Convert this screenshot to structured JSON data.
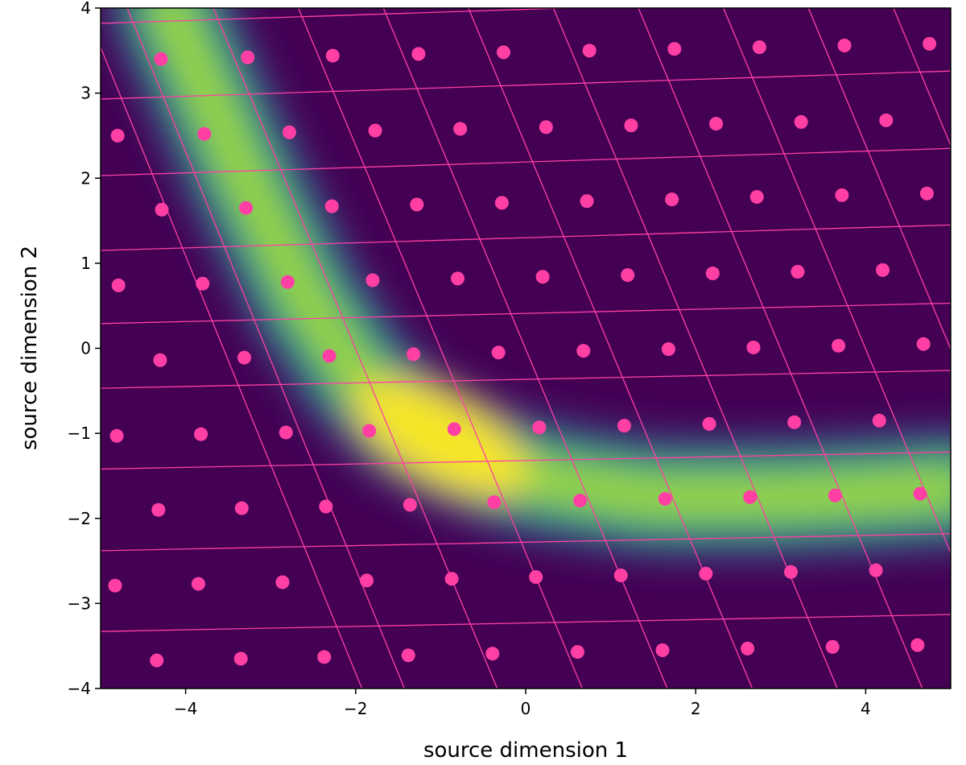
{
  "chart_data": {
    "type": "heatmap",
    "title": "",
    "xlabel": "source dimension 1",
    "ylabel": "source dimension 2",
    "xlim": [
      -5,
      5
    ],
    "ylim": [
      -4,
      4
    ],
    "x_ticks": [
      -4,
      -2,
      0,
      2,
      4
    ],
    "y_ticks": [
      -4,
      -3,
      -2,
      -1,
      0,
      1,
      2,
      3,
      4
    ],
    "x_tick_labels": [
      "−4",
      "−2",
      "0",
      "2",
      "4"
    ],
    "y_tick_labels": [
      "−4",
      "−3",
      "−2",
      "−1",
      "0",
      "1",
      "2",
      "3",
      "4"
    ],
    "colormap": "viridis",
    "overlay_color": "#ff3fa4",
    "density_ridge": [
      {
        "x": -4.2,
        "y": 4.0
      },
      {
        "x": -3.3,
        "y": 2.0
      },
      {
        "x": -2.6,
        "y": 0.6
      },
      {
        "x": -2.0,
        "y": -0.3
      },
      {
        "x": -1.4,
        "y": -0.9
      },
      {
        "x": -0.8,
        "y": -1.2
      },
      {
        "x": -0.2,
        "y": -1.45
      },
      {
        "x": 0.5,
        "y": -1.6
      },
      {
        "x": 1.5,
        "y": -1.75
      },
      {
        "x": 3.0,
        "y": -1.75
      },
      {
        "x": 4.2,
        "y": -1.7
      },
      {
        "x": 5.0,
        "y": -1.65
      }
    ],
    "density_peak": {
      "x": -1.0,
      "y": -1.05
    },
    "grid_lines": {
      "horizontal": [
        [
          [
            -5,
            -4.29
          ],
          [
            5,
            -4.1
          ]
        ],
        [
          [
            -5,
            -3.33
          ],
          [
            5,
            -3.13
          ]
        ],
        [
          [
            -5,
            -2.38
          ],
          [
            5,
            -2.18
          ]
        ],
        [
          [
            -5,
            -1.42
          ],
          [
            5,
            -1.22
          ]
        ],
        [
          [
            -5,
            -0.47
          ],
          [
            5,
            -0.26
          ]
        ],
        [
          [
            -5,
            0.29
          ],
          [
            5,
            0.53
          ]
        ],
        [
          [
            -5,
            1.15
          ],
          [
            5,
            1.45
          ]
        ],
        [
          [
            -5,
            2.03
          ],
          [
            5,
            2.35
          ]
        ],
        [
          [
            -5,
            2.93
          ],
          [
            5,
            3.26
          ]
        ],
        [
          [
            -5,
            3.82
          ],
          [
            5,
            4.15
          ]
        ]
      ],
      "slanted": [
        [
          [
            -5.8,
            5.5
          ],
          [
            -1.6,
            -4.8
          ]
        ],
        [
          [
            -5.3,
            5.5
          ],
          [
            -1.1,
            -4.8
          ]
        ],
        [
          [
            -4.3,
            5.5
          ],
          [
            0.0,
            -4.8
          ]
        ],
        [
          [
            -3.3,
            5.5
          ],
          [
            1.0,
            -4.8
          ]
        ],
        [
          [
            -2.3,
            5.5
          ],
          [
            2.0,
            -4.8
          ]
        ],
        [
          [
            -1.3,
            5.5
          ],
          [
            3.0,
            -4.8
          ]
        ],
        [
          [
            -0.3,
            5.5
          ],
          [
            4.0,
            -4.8
          ]
        ],
        [
          [
            0.7,
            5.5
          ],
          [
            5.0,
            -4.8
          ]
        ],
        [
          [
            1.7,
            5.5
          ],
          [
            6.0,
            -4.8
          ]
        ],
        [
          [
            2.7,
            5.5
          ],
          [
            7.0,
            -4.8
          ]
        ],
        [
          [
            3.7,
            5.5
          ],
          [
            8.0,
            -4.8
          ]
        ],
        [
          [
            4.7,
            5.5
          ],
          [
            9.0,
            -4.8
          ]
        ]
      ]
    },
    "points": [
      {
        "x": -4.29,
        "y": 3.4
      },
      {
        "x": -3.27,
        "y": 3.42
      },
      {
        "x": -2.27,
        "y": 3.44
      },
      {
        "x": -1.26,
        "y": 3.46
      },
      {
        "x": -0.26,
        "y": 3.48
      },
      {
        "x": 0.75,
        "y": 3.5
      },
      {
        "x": 1.75,
        "y": 3.52
      },
      {
        "x": 2.75,
        "y": 3.54
      },
      {
        "x": 3.75,
        "y": 3.56
      },
      {
        "x": 4.75,
        "y": 3.58
      },
      {
        "x": -4.8,
        "y": 2.5
      },
      {
        "x": -3.78,
        "y": 2.52
      },
      {
        "x": -2.78,
        "y": 2.54
      },
      {
        "x": -1.77,
        "y": 2.56
      },
      {
        "x": -0.77,
        "y": 2.58
      },
      {
        "x": 0.24,
        "y": 2.6
      },
      {
        "x": 1.24,
        "y": 2.62
      },
      {
        "x": 2.24,
        "y": 2.64
      },
      {
        "x": 3.24,
        "y": 2.66
      },
      {
        "x": 4.24,
        "y": 2.68
      },
      {
        "x": -4.28,
        "y": 1.63
      },
      {
        "x": -3.29,
        "y": 1.65
      },
      {
        "x": -2.28,
        "y": 1.67
      },
      {
        "x": -1.28,
        "y": 1.69
      },
      {
        "x": -0.28,
        "y": 1.71
      },
      {
        "x": 0.72,
        "y": 1.73
      },
      {
        "x": 1.72,
        "y": 1.75
      },
      {
        "x": 2.72,
        "y": 1.78
      },
      {
        "x": 3.72,
        "y": 1.8
      },
      {
        "x": 4.72,
        "y": 1.82
      },
      {
        "x": -4.79,
        "y": 0.74
      },
      {
        "x": -3.8,
        "y": 0.76
      },
      {
        "x": -2.8,
        "y": 0.78
      },
      {
        "x": -1.8,
        "y": 0.8
      },
      {
        "x": -0.8,
        "y": 0.82
      },
      {
        "x": 0.2,
        "y": 0.84
      },
      {
        "x": 1.2,
        "y": 0.86
      },
      {
        "x": 2.2,
        "y": 0.88
      },
      {
        "x": 3.2,
        "y": 0.9
      },
      {
        "x": 4.2,
        "y": 0.92
      },
      {
        "x": -4.3,
        "y": -0.14
      },
      {
        "x": -3.31,
        "y": -0.11
      },
      {
        "x": -2.31,
        "y": -0.09
      },
      {
        "x": -1.32,
        "y": -0.07
      },
      {
        "x": -0.32,
        "y": -0.05
      },
      {
        "x": 0.68,
        "y": -0.03
      },
      {
        "x": 1.68,
        "y": -0.01
      },
      {
        "x": 2.68,
        "y": 0.01
      },
      {
        "x": 3.68,
        "y": 0.03
      },
      {
        "x": 4.68,
        "y": 0.05
      },
      {
        "x": -4.81,
        "y": -1.03
      },
      {
        "x": -3.82,
        "y": -1.01
      },
      {
        "x": -2.82,
        "y": -0.99
      },
      {
        "x": -1.84,
        "y": -0.97
      },
      {
        "x": -0.84,
        "y": -0.95
      },
      {
        "x": 0.16,
        "y": -0.93
      },
      {
        "x": 1.16,
        "y": -0.91
      },
      {
        "x": 2.16,
        "y": -0.89
      },
      {
        "x": 3.16,
        "y": -0.87
      },
      {
        "x": 4.16,
        "y": -0.85
      },
      {
        "x": -4.32,
        "y": -1.9
      },
      {
        "x": -3.34,
        "y": -1.88
      },
      {
        "x": -2.35,
        "y": -1.86
      },
      {
        "x": -1.36,
        "y": -1.84
      },
      {
        "x": -0.37,
        "y": -1.81
      },
      {
        "x": 0.64,
        "y": -1.79
      },
      {
        "x": 1.64,
        "y": -1.77
      },
      {
        "x": 2.64,
        "y": -1.75
      },
      {
        "x": 3.64,
        "y": -1.73
      },
      {
        "x": 4.64,
        "y": -1.71
      },
      {
        "x": -4.83,
        "y": -2.79
      },
      {
        "x": -3.85,
        "y": -2.77
      },
      {
        "x": -2.86,
        "y": -2.75
      },
      {
        "x": -1.87,
        "y": -2.73
      },
      {
        "x": -0.87,
        "y": -2.71
      },
      {
        "x": 0.12,
        "y": -2.69
      },
      {
        "x": 1.12,
        "y": -2.67
      },
      {
        "x": 2.12,
        "y": -2.65
      },
      {
        "x": 3.12,
        "y": -2.63
      },
      {
        "x": 4.12,
        "y": -2.61
      },
      {
        "x": -4.34,
        "y": -3.67
      },
      {
        "x": -3.35,
        "y": -3.65
      },
      {
        "x": -2.37,
        "y": -3.63
      },
      {
        "x": -1.38,
        "y": -3.61
      },
      {
        "x": -0.39,
        "y": -3.59
      },
      {
        "x": 0.61,
        "y": -3.57
      },
      {
        "x": 1.61,
        "y": -3.55
      },
      {
        "x": 2.61,
        "y": -3.53
      },
      {
        "x": 3.61,
        "y": -3.51
      },
      {
        "x": 4.61,
        "y": -3.49
      }
    ]
  }
}
